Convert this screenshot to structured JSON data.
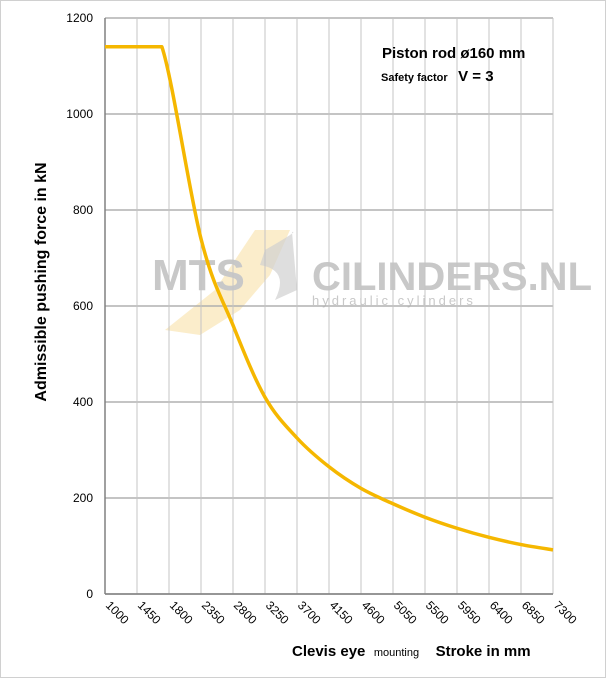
{
  "chart_data": {
    "type": "line",
    "ylabel": "Admissible pushing  force in kN",
    "xlabel_parts": [
      "Clevis eye",
      "mounting",
      "Stroke in mm"
    ],
    "annotation": {
      "line1": "Piston rod ø160 mm",
      "line2_small": "Safety factor",
      "line2_big": "V = 3"
    },
    "watermark": {
      "left": "MTS",
      "right": "CILINDERS.NL",
      "sub": "hydraulic  cylinders"
    },
    "x_categories": [
      "1000",
      "1450",
      "1800",
      "2350",
      "2800",
      "3250",
      "3700",
      "4150",
      "4600",
      "5050",
      "5500",
      "5950",
      "6400",
      "6850",
      "7300"
    ],
    "y_ticks": [
      "0",
      "200",
      "400",
      "600",
      "800",
      "1000",
      "1200"
    ],
    "ylim": [
      0,
      1200
    ],
    "grid": true,
    "series": [
      {
        "color": "#f5b700",
        "x": [
          1000,
          1450,
          1800,
          2350,
          2800,
          3250,
          3700,
          4150,
          4600,
          5050,
          5500,
          5950,
          6400,
          6850,
          7300
        ],
        "values": [
          1140,
          1140,
          1140,
          740,
          560,
          410,
          325,
          265,
          220,
          188,
          160,
          137,
          118,
          103,
          92
        ]
      }
    ]
  }
}
